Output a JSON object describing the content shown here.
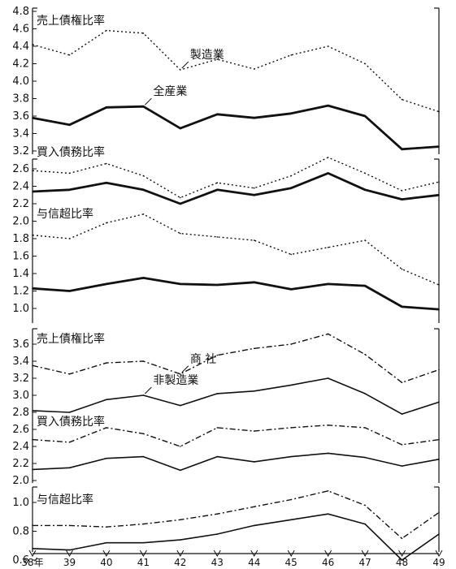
{
  "x_axis": {
    "ticks": [
      "38年",
      "39",
      "40",
      "41",
      "42",
      "43",
      "44",
      "45",
      "46",
      "47",
      "48",
      "49"
    ]
  },
  "chart_data": [
    {
      "type": "line",
      "title": "売上債権比率",
      "ylim": [
        3.2,
        4.8
      ],
      "yticks": [
        "4.8",
        "4.6",
        "4.4",
        "4.2",
        "4.0",
        "3.8",
        "3.6",
        "3.4",
        "3.2"
      ],
      "categories": [
        "38",
        "39",
        "40",
        "41",
        "42",
        "43",
        "44",
        "45",
        "46",
        "47",
        "48",
        "49"
      ],
      "series": [
        {
          "name": "製造業",
          "style": "dotted",
          "values": [
            4.42,
            4.3,
            4.58,
            4.55,
            4.13,
            4.25,
            4.14,
            4.3,
            4.4,
            4.2,
            3.79,
            3.65
          ]
        },
        {
          "name": "全産業",
          "style": "solid-thick",
          "values": [
            3.58,
            3.5,
            3.7,
            3.71,
            3.46,
            3.62,
            3.58,
            3.63,
            3.72,
            3.6,
            3.22,
            3.25
          ]
        }
      ]
    },
    {
      "type": "line",
      "title": "買入債務比率 / 与信超比率",
      "label_upper": "買入債務比率",
      "label_lower": "与信超比率",
      "ylim": [
        0.9,
        2.7
      ],
      "yticks": [
        "2.6",
        "2.4",
        "2.2",
        "2.0",
        "1.8",
        "1.6",
        "1.4",
        "1.2",
        "1.0"
      ],
      "categories": [
        "38",
        "39",
        "40",
        "41",
        "42",
        "43",
        "44",
        "45",
        "46",
        "47",
        "48",
        "49"
      ],
      "series": [
        {
          "group": "買入債務比率",
          "style": "dotted",
          "values": [
            2.58,
            2.55,
            2.66,
            2.52,
            2.27,
            2.44,
            2.38,
            2.52,
            2.73,
            2.55,
            2.35,
            2.45
          ]
        },
        {
          "group": "買入債務比率",
          "style": "solid-thick",
          "values": [
            2.34,
            2.36,
            2.44,
            2.36,
            2.2,
            2.36,
            2.3,
            2.38,
            2.55,
            2.36,
            2.25,
            2.3
          ]
        },
        {
          "group": "与信超比率",
          "style": "dotted",
          "values": [
            1.84,
            1.8,
            1.98,
            2.08,
            1.86,
            1.82,
            1.78,
            1.62,
            1.7,
            1.78,
            1.45,
            1.27
          ]
        },
        {
          "group": "与信超比率",
          "style": "solid-thick",
          "values": [
            1.23,
            1.2,
            1.28,
            1.35,
            1.28,
            1.27,
            1.3,
            1.22,
            1.28,
            1.26,
            1.02,
            0.99
          ]
        }
      ]
    },
    {
      "type": "line",
      "title": "売上債権比率 / 買入債務比率",
      "label_upper": "売上債権比率",
      "label_mid": "買入債務比率",
      "ylim": [
        2.0,
        3.7
      ],
      "yticks": [
        "3.6",
        "3.4",
        "3.2",
        "3.0",
        "2.8",
        "2.6",
        "2.4",
        "2.2",
        "2.0"
      ],
      "categories": [
        "38",
        "39",
        "40",
        "41",
        "42",
        "43",
        "44",
        "45",
        "46",
        "47",
        "48",
        "49"
      ],
      "series": [
        {
          "name": "商 社",
          "group": "売上債権比率",
          "style": "dash-dot",
          "values": [
            3.35,
            3.25,
            3.38,
            3.4,
            3.25,
            3.47,
            3.55,
            3.6,
            3.72,
            3.48,
            3.15,
            3.3
          ]
        },
        {
          "name": "非製造業",
          "group": "売上債権比率",
          "style": "solid",
          "values": [
            2.82,
            2.8,
            2.95,
            3.0,
            2.88,
            3.02,
            3.05,
            3.12,
            3.2,
            3.02,
            2.78,
            2.92
          ]
        },
        {
          "group": "買入債務比率",
          "style": "dash-dot",
          "values": [
            2.48,
            2.45,
            2.62,
            2.55,
            2.4,
            2.62,
            2.58,
            2.62,
            2.65,
            2.62,
            2.42,
            2.48
          ]
        },
        {
          "group": "買入債務比率",
          "style": "solid",
          "values": [
            2.13,
            2.15,
            2.26,
            2.28,
            2.12,
            2.28,
            2.22,
            2.28,
            2.32,
            2.27,
            2.17,
            2.25
          ]
        }
      ]
    },
    {
      "type": "line",
      "title": "与信超比率",
      "ylim": [
        0.55,
        1.1
      ],
      "yticks": [
        "1.0",
        "0.8",
        "0.6"
      ],
      "categories": [
        "38",
        "39",
        "40",
        "41",
        "42",
        "43",
        "44",
        "45",
        "46",
        "47",
        "48",
        "49"
      ],
      "series": [
        {
          "group": "与信超比率",
          "style": "dash-dot",
          "values": [
            0.84,
            0.84,
            0.83,
            0.85,
            0.88,
            0.92,
            0.97,
            1.02,
            1.08,
            0.98,
            0.75,
            0.93
          ]
        },
        {
          "group": "与信超比率",
          "style": "solid",
          "values": [
            0.68,
            0.67,
            0.72,
            0.72,
            0.74,
            0.78,
            0.84,
            0.88,
            0.92,
            0.85,
            0.6,
            0.78
          ]
        }
      ]
    }
  ]
}
